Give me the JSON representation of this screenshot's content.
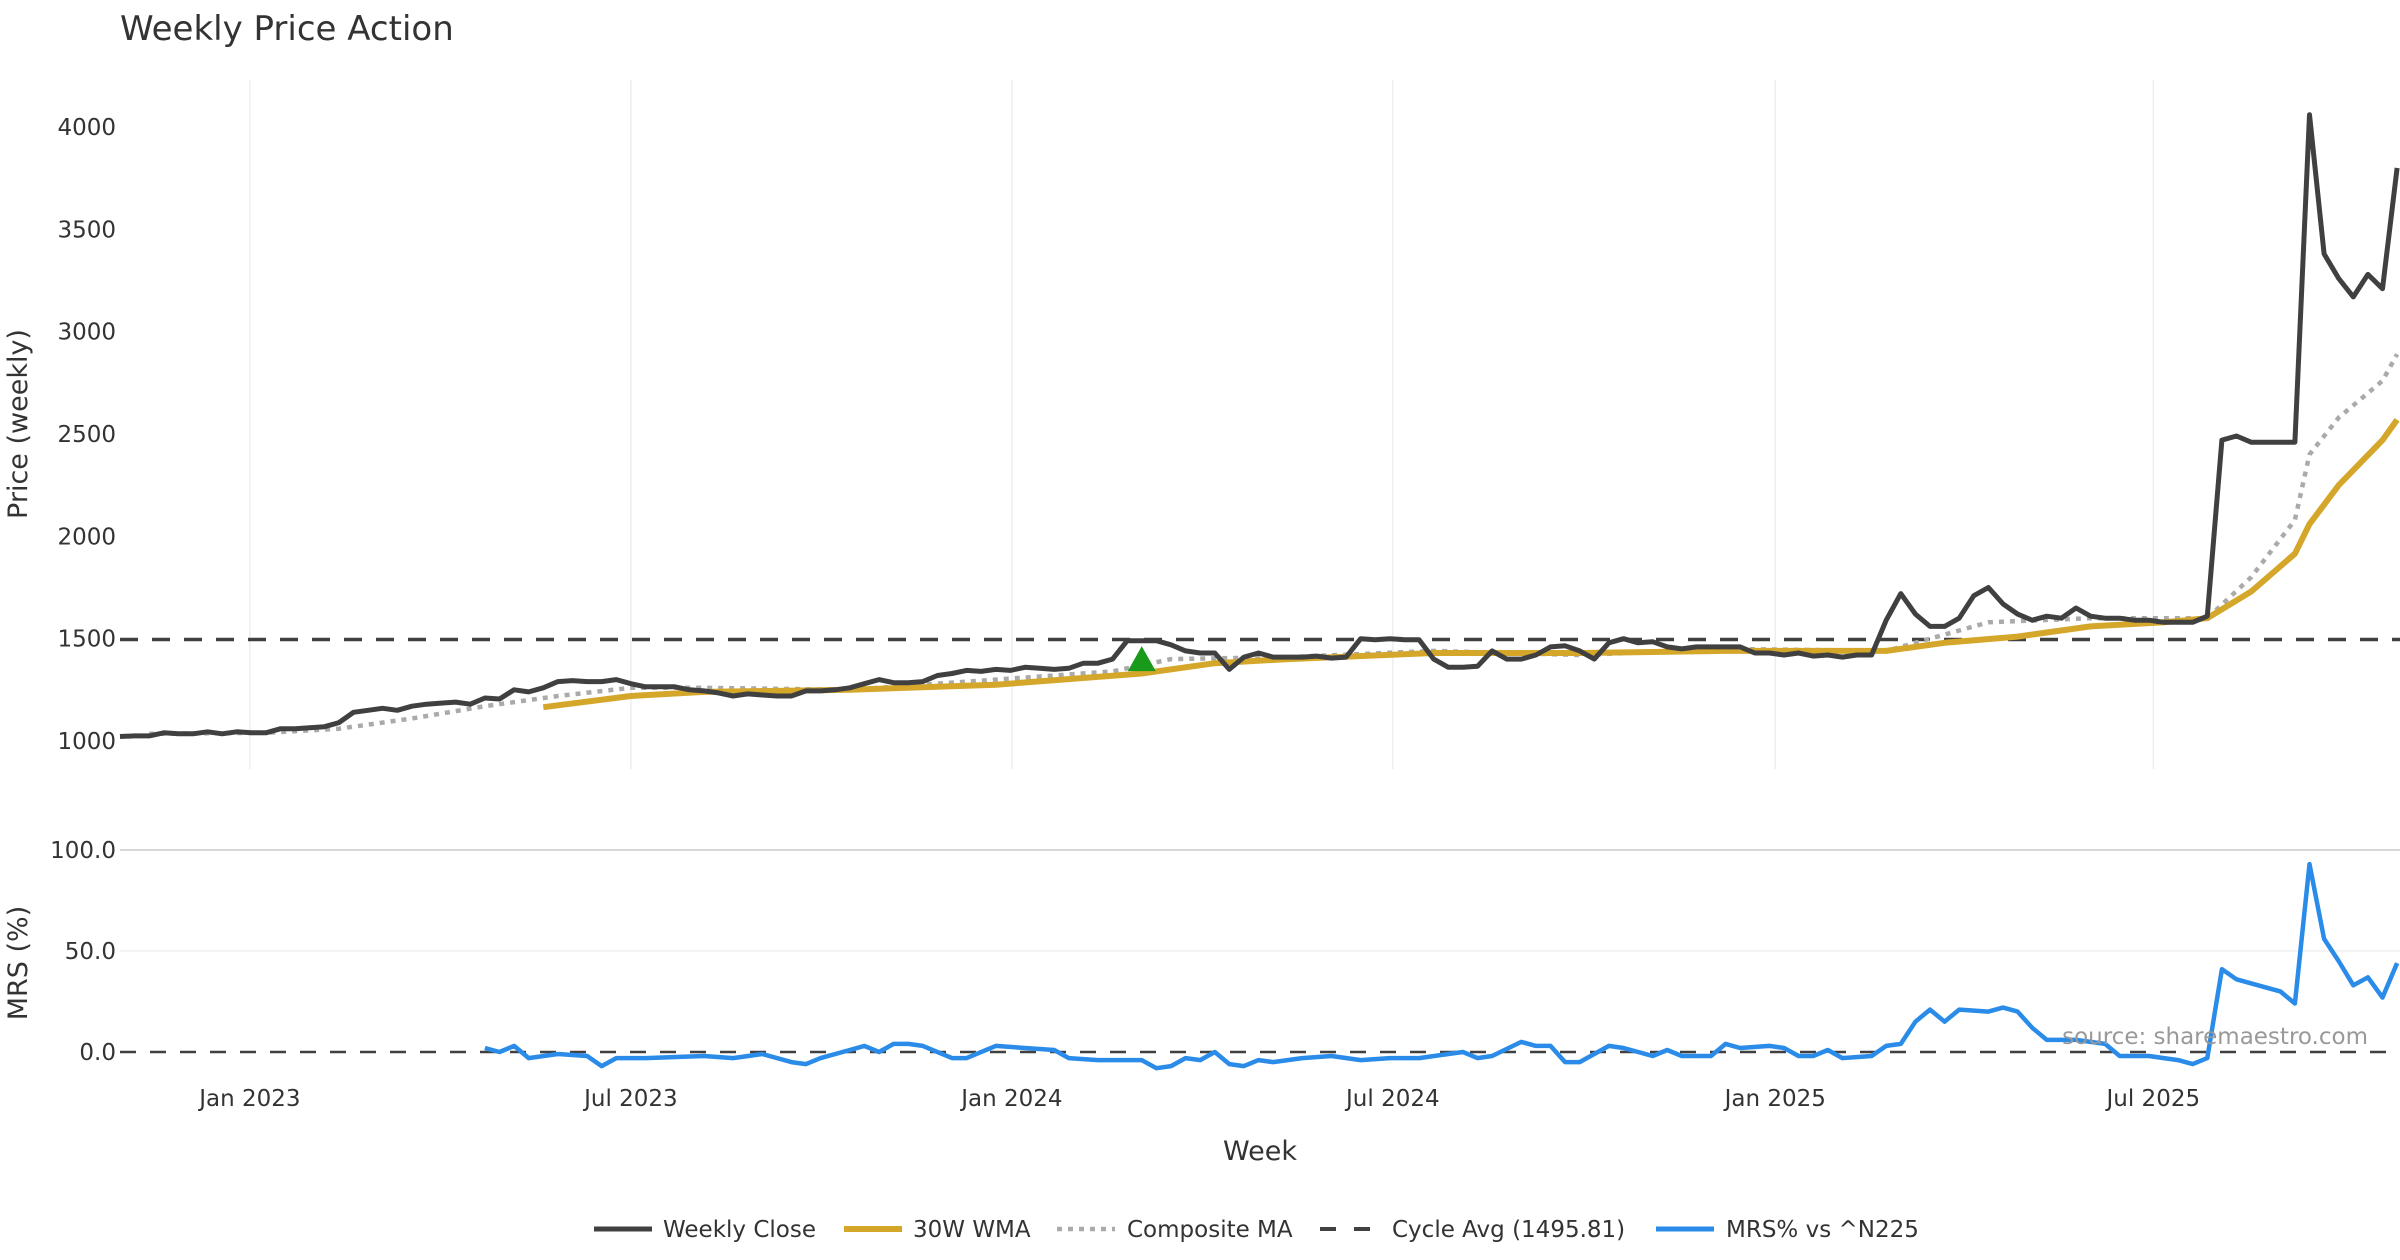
{
  "chart_data": [
    {
      "type": "line",
      "title": "Weekly Price Action",
      "xlabel": "Week",
      "ylabel": "Price (weekly)",
      "ylim": [
        1000,
        4000
      ],
      "xlim_week_index": [
        0,
        156.2
      ],
      "yticks": [
        "1000",
        "1500",
        "2000",
        "2500",
        "3000",
        "3500",
        "4000"
      ],
      "ytick_values": [
        1000,
        1500,
        2000,
        2500,
        3000,
        3500,
        4000
      ],
      "xticks": [
        {
          "label": "Jan 2023",
          "week": 8.9
        },
        {
          "label": "Jul 2023",
          "week": 35.0
        },
        {
          "label": "Jan 2024",
          "week": 61.1
        },
        {
          "label": "Jul 2024",
          "week": 87.2
        },
        {
          "label": "Jan 2025",
          "week": 113.4
        },
        {
          "label": "Jul 2025",
          "week": 139.3
        }
      ],
      "grid": "vertical",
      "series": [
        {
          "name": "Weekly Close",
          "color": "#404040",
          "style": "solid",
          "values": [
            1022,
            1025,
            1025,
            1040,
            1035,
            1035,
            1045,
            1035,
            1045,
            1040,
            1040,
            1060,
            1060,
            1065,
            1070,
            1090,
            1140,
            1150,
            1160,
            1150,
            1170,
            1180,
            1185,
            1190,
            1180,
            1210,
            1205,
            1250,
            1240,
            1260,
            1290,
            1295,
            1290,
            1290,
            1300,
            1280,
            1265,
            1265,
            1265,
            1250,
            1245,
            1235,
            1220,
            1230,
            1225,
            1220,
            1220,
            1245,
            1245,
            1250,
            1260,
            1280,
            1300,
            1285,
            1285,
            1290,
            1320,
            1330,
            1345,
            1340,
            1350,
            1345,
            1360,
            1355,
            1350,
            1355,
            1380,
            1380,
            1400,
            1490,
            1490,
            1490,
            1470,
            1440,
            1430,
            1430,
            1350,
            1410,
            1430,
            1410,
            1410,
            1410,
            1415,
            1405,
            1410,
            1500,
            1495,
            1500,
            1495,
            1495,
            1400,
            1360,
            1360,
            1365,
            1440,
            1400,
            1400,
            1420,
            1460,
            1465,
            1440,
            1400,
            1480,
            1500,
            1480,
            1485,
            1460,
            1450,
            1460,
            1460,
            1460,
            1460,
            1430,
            1430,
            1420,
            1430,
            1415,
            1420,
            1410,
            1420,
            1420,
            1590,
            1720,
            1620,
            1560,
            1560,
            1600,
            1710,
            1750,
            1670,
            1620,
            1590,
            1610,
            1600,
            1650,
            1610,
            1600,
            1600,
            1590,
            1590,
            1580,
            1580,
            1580,
            1610,
            2470,
            2490,
            2460,
            2460,
            2460,
            2460,
            4060,
            3380,
            3260,
            3170,
            3280,
            3210,
            3800
          ]
        },
        {
          "name": "30W WMA",
          "color": "#D4A62A",
          "style": "solid",
          "points": [
            [
              29,
              1165
            ],
            [
              35,
              1220
            ],
            [
              40,
              1240
            ],
            [
              50,
              1250
            ],
            [
              60,
              1275
            ],
            [
              70,
              1330
            ],
            [
              75,
              1380
            ],
            [
              80,
              1400
            ],
            [
              90,
              1430
            ],
            [
              100,
              1430
            ],
            [
              110,
              1440
            ],
            [
              121,
              1440
            ],
            [
              125,
              1480
            ],
            [
              130,
              1510
            ],
            [
              135,
              1560
            ],
            [
              140,
              1580
            ],
            [
              143,
              1600
            ],
            [
              146,
              1730
            ],
            [
              149,
              1915
            ],
            [
              150,
              2060
            ],
            [
              152,
              2250
            ],
            [
              155,
              2470
            ],
            [
              156,
              2570
            ]
          ]
        },
        {
          "name": "Composite MA",
          "color": "#AAAAAA",
          "style": "dotted",
          "points": [
            [
              2,
              1035
            ],
            [
              10,
              1040
            ],
            [
              15,
              1060
            ],
            [
              20,
              1110
            ],
            [
              25,
              1170
            ],
            [
              30,
              1220
            ],
            [
              35,
              1260
            ],
            [
              40,
              1260
            ],
            [
              50,
              1250
            ],
            [
              60,
              1300
            ],
            [
              68,
              1340
            ],
            [
              72,
              1400
            ],
            [
              80,
              1410
            ],
            [
              90,
              1440
            ],
            [
              100,
              1420
            ],
            [
              110,
              1450
            ],
            [
              121,
              1440
            ],
            [
              124,
              1500
            ],
            [
              128,
              1580
            ],
            [
              135,
              1600
            ],
            [
              143,
              1600
            ],
            [
              146,
              1800
            ],
            [
              149,
              2080
            ],
            [
              150,
              2400
            ],
            [
              152,
              2580
            ],
            [
              154,
              2700
            ],
            [
              155,
              2760
            ],
            [
              156,
              2890
            ]
          ]
        },
        {
          "name": "Cycle Avg (1495.81)",
          "color": "#404040",
          "style": "dashed",
          "value": 1495.81
        }
      ],
      "markers": [
        {
          "type": "triangle-up",
          "color": "#1A9A1A",
          "week": 70,
          "price": 1395
        }
      ]
    },
    {
      "type": "line",
      "xlabel": "Week",
      "ylabel": "MRS (%)",
      "ylim": [
        -8,
        100
      ],
      "yticks": [
        "0.0",
        "50.0",
        "100.0"
      ],
      "ytick_values": [
        0,
        50,
        100
      ],
      "reference_line": 0,
      "series": [
        {
          "name": "MRS% vs ^N225",
          "color": "#2A8CE8",
          "style": "solid",
          "points": [
            [
              25,
              2
            ],
            [
              26,
              0
            ],
            [
              27,
              3
            ],
            [
              28,
              -3
            ],
            [
              30,
              -1
            ],
            [
              32,
              -2
            ],
            [
              33,
              -7
            ],
            [
              34,
              -3
            ],
            [
              36,
              -3
            ],
            [
              40,
              -2
            ],
            [
              42,
              -3
            ],
            [
              44,
              -1
            ],
            [
              46,
              -5
            ],
            [
              47,
              -6
            ],
            [
              48,
              -3
            ],
            [
              50,
              1
            ],
            [
              51,
              3
            ],
            [
              52,
              0
            ],
            [
              53,
              4
            ],
            [
              54,
              4
            ],
            [
              55,
              3
            ],
            [
              57,
              -3
            ],
            [
              58,
              -3
            ],
            [
              60,
              3
            ],
            [
              62,
              2
            ],
            [
              64,
              1
            ],
            [
              65,
              -3
            ],
            [
              67,
              -4
            ],
            [
              70,
              -4
            ],
            [
              71,
              -8
            ],
            [
              72,
              -7
            ],
            [
              73,
              -3
            ],
            [
              74,
              -4
            ],
            [
              75,
              0
            ],
            [
              76,
              -6
            ],
            [
              77,
              -7
            ],
            [
              78,
              -4
            ],
            [
              79,
              -5
            ],
            [
              81,
              -3
            ],
            [
              83,
              -2
            ],
            [
              85,
              -4
            ],
            [
              87,
              -3
            ],
            [
              89,
              -3
            ],
            [
              91,
              -1
            ],
            [
              92,
              0
            ],
            [
              93,
              -3
            ],
            [
              94,
              -2
            ],
            [
              96,
              5
            ],
            [
              97,
              3
            ],
            [
              98,
              3
            ],
            [
              99,
              -5
            ],
            [
              100,
              -5
            ],
            [
              102,
              3
            ],
            [
              103,
              2
            ],
            [
              105,
              -2
            ],
            [
              106,
              1
            ],
            [
              107,
              -2
            ],
            [
              109,
              -2
            ],
            [
              110,
              4
            ],
            [
              111,
              2
            ],
            [
              113,
              3
            ],
            [
              114,
              2
            ],
            [
              115,
              -2
            ],
            [
              116,
              -2
            ],
            [
              117,
              1
            ],
            [
              118,
              -3
            ],
            [
              120,
              -2
            ],
            [
              121,
              3
            ],
            [
              122,
              4
            ],
            [
              123,
              15
            ],
            [
              124,
              21
            ],
            [
              125,
              15
            ],
            [
              126,
              21
            ],
            [
              128,
              20
            ],
            [
              129,
              22
            ],
            [
              130,
              20
            ],
            [
              131,
              12
            ],
            [
              132,
              6
            ],
            [
              134,
              6
            ],
            [
              136,
              4
            ],
            [
              137,
              -2
            ],
            [
              139,
              -2
            ],
            [
              141,
              -4
            ],
            [
              142,
              -6
            ],
            [
              143,
              -3
            ],
            [
              144,
              41
            ],
            [
              145,
              36
            ],
            [
              147,
              32
            ],
            [
              148,
              30
            ],
            [
              149,
              24
            ],
            [
              150,
              93
            ],
            [
              151,
              56
            ],
            [
              152,
              45
            ],
            [
              153,
              33
            ],
            [
              154,
              37
            ],
            [
              155,
              27
            ],
            [
              156,
              44
            ]
          ]
        }
      ]
    }
  ],
  "source_text": "source: sharemaestro.com",
  "legend": [
    "Weekly Close",
    "30W WMA",
    "Composite MA",
    "Cycle Avg (1495.81)",
    "MRS% vs ^N225"
  ]
}
